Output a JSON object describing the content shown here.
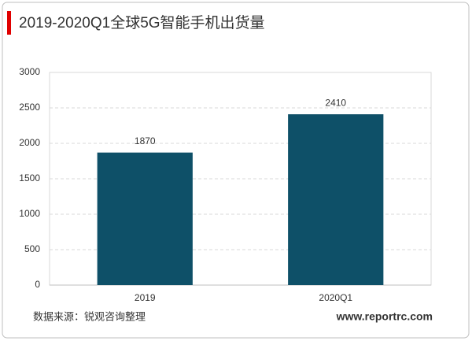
{
  "chart_data": {
    "type": "bar",
    "title": "2019-2020Q1全球5G智能手机出货量",
    "categories": [
      "2019",
      "2020Q1"
    ],
    "values": [
      1870,
      2410
    ],
    "color": "#0e5068",
    "ylim": [
      0,
      3000
    ],
    "yticks": [
      0,
      500,
      1000,
      1500,
      2000,
      2500,
      3000
    ],
    "grid": true,
    "source": "数据来源：锐观咨询整理",
    "website": "www.reportrc.com"
  }
}
